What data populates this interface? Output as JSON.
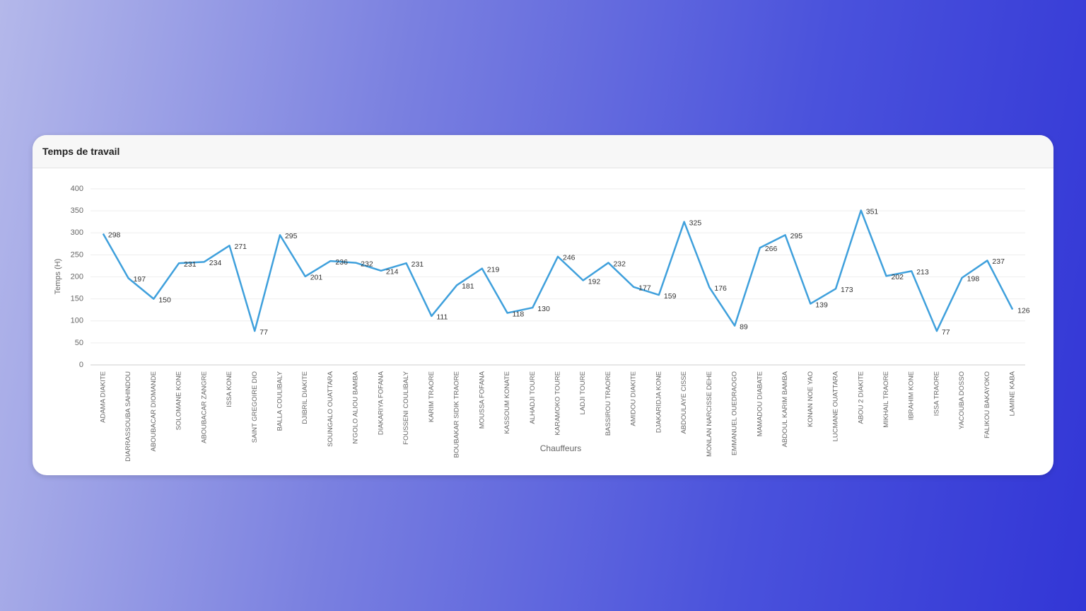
{
  "card_title": "Temps de travail",
  "chart_data": {
    "type": "line",
    "x_label": "Chauffeurs",
    "y_label": "Temps (H)",
    "categories": [
      "ADAMA DIAKITE",
      "DIARRASSOUBA SAHINDOU",
      "ABOUBACAR DIOMANDE",
      "SOLOMANE KONE",
      "ABOUBACAR ZANGRE",
      "ISSA KONE",
      "SAINT GREGOIRE DIO",
      "BALLA COULIBALY",
      "DJIBRIL DIAKITE",
      "SOUNGALO OUATTARA",
      "N'GOLO ALIOU BAMBA",
      "DIAKARIYA FOFANA",
      "FOUSSENI COULIBALY",
      "KARIM TRAORE",
      "BOUBAKAR SIDIK TRAORE",
      "MOUSSA FOFANA",
      "KASSOUM KONATE",
      "ALHADJI TOURE",
      "KARAMOKO TOURE",
      "LADJI TOURE",
      "BASSIROU TRAORE",
      "AMIDOU DIAKITE",
      "DJAKARIDJA KONE",
      "ABDOULAYE CISSE",
      "MONLAN NARCISSE DEHE",
      "EMMANUEL OUEDRAOGO",
      "MAMADOU DIABATE",
      "ABDOUL KARIM BAMBA",
      "KONAN NOE YAO",
      "LUCMANE OUATTARA",
      "ABOU 2 DIAKITE",
      "MIKHAIL TRAORE",
      "IBRAHIM KONE",
      "ISSA TRAORE",
      "YACOUBA DOSSO",
      "FALIKOU BAKAYOKO",
      "LAMINE KABA"
    ],
    "values": [
      298,
      197,
      150,
      231,
      234,
      271,
      77,
      295,
      201,
      236,
      232,
      214,
      231,
      111,
      181,
      219,
      118,
      130,
      246,
      192,
      232,
      177,
      159,
      325,
      176,
      89,
      266,
      295,
      139,
      173,
      351,
      202,
      213,
      77,
      198,
      237,
      126
    ],
    "color": "#3fa0dc",
    "ylim": [
      0,
      400
    ],
    "yticks": [
      0,
      50,
      100,
      150,
      200,
      250,
      300,
      350,
      400
    ],
    "grid": true
  }
}
